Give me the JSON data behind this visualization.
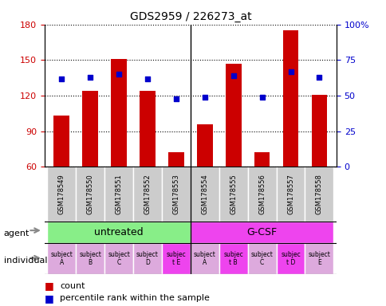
{
  "title": "GDS2959 / 226273_at",
  "samples": [
    "GSM178549",
    "GSM178550",
    "GSM178551",
    "GSM178552",
    "GSM178553",
    "GSM178554",
    "GSM178555",
    "GSM178556",
    "GSM178557",
    "GSM178558"
  ],
  "counts": [
    103,
    124,
    151,
    124,
    72,
    96,
    147,
    72,
    175,
    121
  ],
  "percentile_ranks": [
    62,
    63,
    65,
    62,
    48,
    49,
    64,
    49,
    67,
    63
  ],
  "ylim_left": [
    60,
    180
  ],
  "ylim_right": [
    0,
    100
  ],
  "yticks_left": [
    60,
    90,
    120,
    150,
    180
  ],
  "yticks_right": [
    0,
    25,
    50,
    75,
    100
  ],
  "bar_color": "#cc0000",
  "dot_color": "#0000cc",
  "bar_bottom": 60,
  "agent_groups": [
    {
      "label": "untreated",
      "start": 0,
      "end": 4,
      "color": "#88ee88"
    },
    {
      "label": "G-CSF",
      "start": 5,
      "end": 9,
      "color": "#ee44ee"
    }
  ],
  "individuals": [
    "subject\nA",
    "subject\nB",
    "subject\nC",
    "subject\nD",
    "subjec\nt E",
    "subject\nA",
    "subjec\nt B",
    "subject\nC",
    "subjec\nt D",
    "subject\nE"
  ],
  "indiv_colors": [
    "#ddaadd",
    "#ddaadd",
    "#ddaadd",
    "#ddaadd",
    "#ee44ee",
    "#ddaadd",
    "#ee44ee",
    "#ddaadd",
    "#ee44ee",
    "#ddaadd"
  ],
  "sample_bg": "#cccccc",
  "tick_label_color_left": "#cc0000",
  "tick_label_color_right": "#0000cc"
}
